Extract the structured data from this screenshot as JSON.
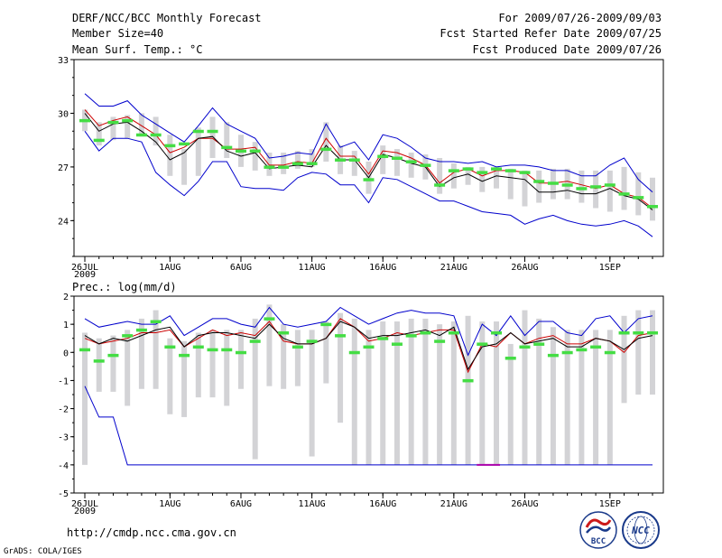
{
  "header": {
    "line1_left": "DERF/NCC/BCC Monthly Forecast",
    "line2_left": "Member Size=40",
    "line3_left": "Mean Surf. Temp.: °C",
    "line1_right": "For 2009/07/26-2009/09/03",
    "line2_right": "Fcst Started Refer Date 2009/07/25",
    "line3_right": "Fcst Produced Date 2009/07/26"
  },
  "footer": {
    "url": "http://cmdp.ncc.cma.gov.cn",
    "grads": "GrADS: COLA/IGES",
    "logo_bcc": "BCC",
    "logo_ncc": "NCC"
  },
  "colors": {
    "max": "#0000cc",
    "min": "#0000cc",
    "mean": "#000000",
    "median": "#cc0000",
    "box": "#d3d3d6",
    "obs": "#44dd44",
    "axis": "#000000",
    "lowmark": "#aa00aa"
  },
  "chart_data": [
    {
      "type": "line",
      "title": "Mean Surf. Temp.: °C",
      "ylim": [
        22,
        33
      ],
      "yticks": [
        24,
        27,
        30,
        33
      ],
      "x_day_range": [
        1,
        41
      ],
      "xtick_days": [
        1,
        7,
        12,
        17,
        22,
        27,
        32,
        38
      ],
      "xtick_labels": [
        "26JUL",
        "1AUG",
        "6AUG",
        "11AUG",
        "16AUG",
        "21AUG",
        "26AUG",
        "1SEP"
      ],
      "year_label": "2009",
      "box_low": [
        29.0,
        28.2,
        28.5,
        28.6,
        28.7,
        28.2,
        26.5,
        26.0,
        26.5,
        27.5,
        27.5,
        27.0,
        26.8,
        26.5,
        26.6,
        26.9,
        27.0,
        27.3,
        26.6,
        26.5,
        25.5,
        26.6,
        26.5,
        26.4,
        26.3,
        25.5,
        25.8,
        26.0,
        25.6,
        25.8,
        25.2,
        24.8,
        25.0,
        25.2,
        25.2,
        25.0,
        24.7,
        24.5,
        24.6,
        24.3,
        24.0
      ],
      "box_high": [
        30.2,
        29.5,
        29.8,
        29.9,
        30.0,
        29.8,
        28.8,
        28.0,
        29.2,
        29.8,
        29.5,
        28.8,
        28.4,
        27.8,
        27.8,
        27.9,
        28.0,
        29.5,
        28.2,
        27.9,
        27.3,
        28.2,
        28.0,
        27.8,
        27.7,
        27.5,
        27.2,
        27.0,
        27.0,
        27.0,
        26.9,
        26.8,
        26.8,
        26.9,
        26.9,
        26.8,
        26.8,
        26.8,
        27.0,
        26.7,
        26.4
      ],
      "series": [
        {
          "name": "max",
          "values": [
            31.1,
            30.4,
            30.4,
            30.7,
            29.9,
            29.4,
            28.9,
            28.4,
            29.3,
            30.3,
            29.4,
            29.0,
            28.6,
            27.5,
            27.6,
            27.8,
            27.7,
            29.4,
            28.1,
            28.4,
            27.4,
            28.8,
            28.6,
            28.1,
            27.5,
            27.3,
            27.3,
            27.2,
            27.3,
            27.0,
            27.1,
            27.1,
            27.0,
            26.8,
            26.8,
            26.5,
            26.5,
            27.1,
            27.5,
            26.3,
            25.6
          ]
        },
        {
          "name": "median",
          "values": [
            30.2,
            29.3,
            29.6,
            29.8,
            29.3,
            28.8,
            27.8,
            28.1,
            28.6,
            28.6,
            28.0,
            28.0,
            28.1,
            27.1,
            27.1,
            27.3,
            27.2,
            28.6,
            27.6,
            27.6,
            26.6,
            27.9,
            27.8,
            27.5,
            27.1,
            26.1,
            26.7,
            26.9,
            26.5,
            26.8,
            26.8,
            26.7,
            26.1,
            26.1,
            26.2,
            26.0,
            25.8,
            26.0,
            25.5,
            25.3,
            24.7
          ]
        },
        {
          "name": "mean",
          "values": [
            30.0,
            29.0,
            29.4,
            29.5,
            29.0,
            28.4,
            27.4,
            27.8,
            28.6,
            28.7,
            27.9,
            27.6,
            27.8,
            26.9,
            27.0,
            27.1,
            27.0,
            28.2,
            27.4,
            27.4,
            26.4,
            27.7,
            27.5,
            27.2,
            27.0,
            25.9,
            26.4,
            26.6,
            26.2,
            26.5,
            26.4,
            26.3,
            25.6,
            25.6,
            25.7,
            25.5,
            25.5,
            25.8,
            25.4,
            25.2,
            24.6
          ]
        },
        {
          "name": "min",
          "values": [
            29.0,
            27.9,
            28.6,
            28.6,
            28.4,
            26.7,
            26.0,
            25.4,
            26.2,
            27.3,
            27.3,
            25.9,
            25.8,
            25.8,
            25.7,
            26.4,
            26.7,
            26.6,
            26.0,
            26.0,
            25.0,
            26.4,
            26.3,
            25.9,
            25.5,
            25.1,
            25.1,
            24.8,
            24.5,
            24.4,
            24.3,
            23.8,
            24.1,
            24.3,
            24.0,
            23.8,
            23.7,
            23.8,
            24.0,
            23.7,
            23.1
          ]
        },
        {
          "name": "observed",
          "values": [
            29.6,
            28.5,
            29.5,
            29.6,
            28.8,
            28.8,
            28.2,
            28.3,
            29.0,
            29.0,
            28.1,
            27.9,
            27.9,
            27.0,
            27.0,
            27.2,
            27.2,
            28.0,
            27.4,
            27.4,
            26.3,
            27.6,
            27.5,
            27.3,
            27.1,
            26.0,
            26.8,
            26.9,
            26.7,
            26.9,
            26.8,
            26.7,
            26.2,
            26.1,
            26.0,
            25.8,
            25.9,
            26.0,
            25.5,
            25.3,
            24.8
          ]
        }
      ]
    },
    {
      "type": "line",
      "title": "Prec.: log(mm/d)",
      "ylim": [
        -5,
        2
      ],
      "yticks": [
        -5,
        -4,
        -3,
        -2,
        -1,
        0,
        1,
        2
      ],
      "x_day_range": [
        1,
        41
      ],
      "xtick_days": [
        1,
        7,
        12,
        17,
        22,
        27,
        32,
        38
      ],
      "xtick_labels": [
        "26JUL",
        "1AUG",
        "6AUG",
        "11AUG",
        "16AUG",
        "21AUG",
        "26AUG",
        "1SEP"
      ],
      "year_label": "2009",
      "box_low": [
        -4.0,
        -1.4,
        -1.4,
        -1.9,
        -1.3,
        -1.3,
        -2.2,
        -2.3,
        -1.6,
        -1.6,
        -1.9,
        -1.3,
        -3.8,
        -1.2,
        -1.3,
        -1.2,
        -3.7,
        -1.1,
        -2.5,
        -4.0,
        -4.0,
        -4.0,
        -4.0,
        -4.0,
        -4.0,
        -4.0,
        -4.0,
        -4.0,
        -4.0,
        -4.0,
        -4.0,
        -4.0,
        -4.0,
        -4.0,
        -4.0,
        -4.0,
        -4.0,
        -4.0,
        -1.8,
        -1.5,
        -1.5
      ],
      "box_high": [
        0.7,
        0.5,
        0.6,
        0.8,
        1.2,
        1.5,
        0.5,
        0.4,
        0.7,
        0.8,
        0.8,
        0.8,
        1.2,
        1.7,
        1.0,
        0.8,
        0.8,
        1.1,
        1.4,
        1.2,
        0.8,
        1.1,
        1.1,
        1.2,
        1.2,
        1.0,
        1.1,
        1.3,
        1.1,
        1.1,
        0.3,
        1.5,
        1.2,
        0.9,
        0.8,
        0.8,
        0.8,
        0.8,
        1.3,
        1.5,
        1.5
      ],
      "series": [
        {
          "name": "max",
          "values": [
            1.2,
            0.9,
            1.0,
            1.1,
            1.0,
            1.0,
            1.3,
            0.6,
            0.9,
            1.2,
            1.2,
            1.0,
            0.9,
            1.6,
            1.0,
            0.9,
            1.0,
            1.1,
            1.6,
            1.3,
            1.0,
            1.2,
            1.4,
            1.5,
            1.4,
            1.4,
            1.3,
            -0.1,
            1.0,
            0.6,
            1.3,
            0.6,
            1.1,
            1.1,
            0.7,
            0.6,
            1.2,
            1.3,
            0.7,
            1.2,
            1.3
          ]
        },
        {
          "name": "median",
          "values": [
            0.5,
            0.3,
            0.4,
            0.5,
            0.7,
            0.7,
            0.8,
            0.2,
            0.5,
            0.8,
            0.6,
            0.7,
            0.6,
            1.1,
            0.4,
            0.3,
            0.3,
            0.5,
            1.2,
            0.9,
            0.4,
            0.5,
            0.7,
            0.6,
            0.7,
            0.8,
            0.8,
            -0.7,
            0.3,
            0.2,
            0.7,
            0.3,
            0.5,
            0.6,
            0.3,
            0.3,
            0.5,
            0.4,
            0.0,
            0.6,
            0.7
          ]
        },
        {
          "name": "mean",
          "values": [
            0.6,
            0.3,
            0.5,
            0.4,
            0.6,
            0.8,
            0.9,
            0.2,
            0.6,
            0.7,
            0.7,
            0.6,
            0.5,
            1.0,
            0.5,
            0.3,
            0.3,
            0.5,
            1.1,
            0.9,
            0.5,
            0.6,
            0.6,
            0.7,
            0.8,
            0.6,
            0.9,
            -0.6,
            0.2,
            0.3,
            0.7,
            0.3,
            0.4,
            0.5,
            0.2,
            0.2,
            0.5,
            0.4,
            0.1,
            0.5,
            0.6
          ]
        },
        {
          "name": "min",
          "values": [
            -1.2,
            -2.3,
            -2.3,
            -4.0,
            -4.0,
            -4.0,
            -4.0,
            -4.0,
            -4.0,
            -4.0,
            -4.0,
            -4.0,
            -4.0,
            -4.0,
            -4.0,
            -4.0,
            -4.0,
            -4.0,
            -4.0,
            -4.0,
            -4.0,
            -4.0,
            -4.0,
            -4.0,
            -4.0,
            -4.0,
            -4.0,
            -4.0,
            -4.0,
            -4.0,
            -4.0,
            -4.0,
            -4.0,
            -4.0,
            -4.0,
            -4.0,
            -4.0,
            -4.0,
            -4.0,
            -4.0,
            -4.0
          ]
        },
        {
          "name": "observed",
          "values": [
            0.1,
            -0.3,
            -0.1,
            0.6,
            0.8,
            1.1,
            0.2,
            -0.1,
            0.2,
            0.1,
            0.1,
            0.0,
            0.4,
            1.2,
            0.7,
            0.2,
            0.4,
            1.0,
            0.6,
            0.0,
            0.2,
            0.5,
            0.3,
            0.6,
            0.7,
            0.4,
            0.7,
            -1.0,
            0.3,
            0.7,
            -0.2,
            0.2,
            0.3,
            -0.1,
            0.0,
            0.1,
            0.2,
            0.0,
            0.7,
            0.7,
            0.7
          ]
        }
      ]
    }
  ]
}
